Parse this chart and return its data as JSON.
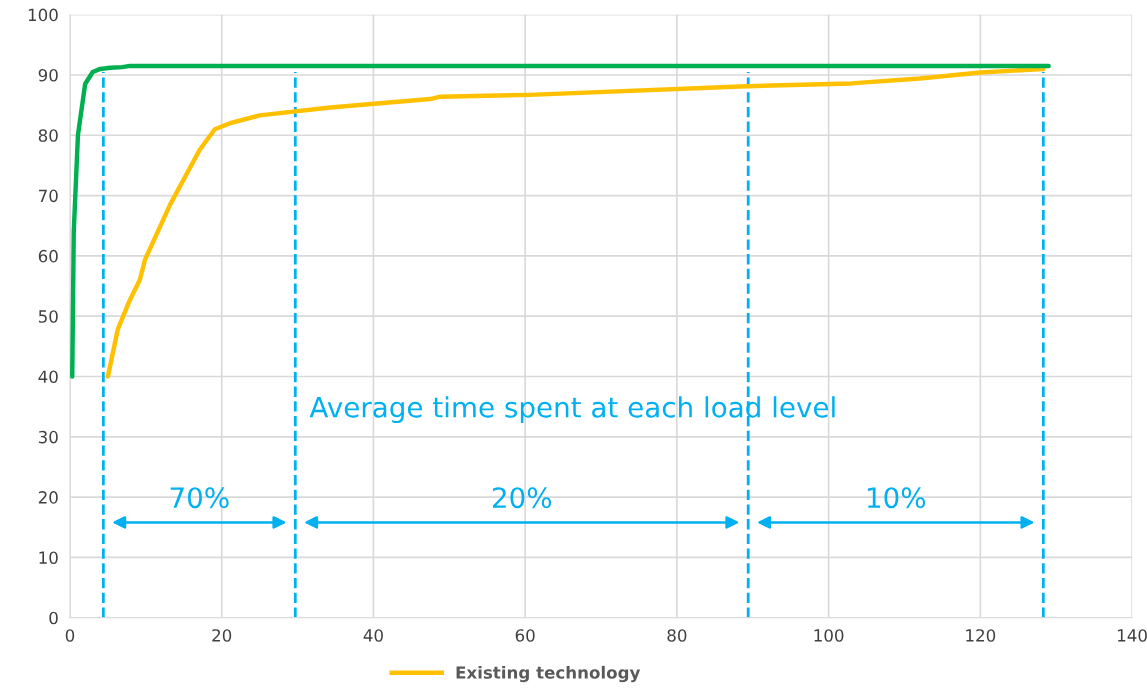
{
  "chart_data": {
    "type": "line",
    "series": [
      {
        "name": "Existing technology",
        "color": "#ffc000",
        "x": [
          5.0,
          6.3,
          7.9,
          9.2,
          9.9,
          13.2,
          17.1,
          19.1,
          21.1,
          25.0,
          34.3,
          47.5,
          48.8,
          60.6,
          88.3,
          103,
          112,
          120,
          128.3
        ],
        "values": [
          40,
          47.8,
          52.7,
          56,
          59.4,
          68.5,
          77.6,
          81,
          82,
          83.3,
          84.6,
          86,
          86.4,
          86.7,
          88.1,
          88.6,
          89.4,
          90.4,
          91
        ]
      },
      {
        "color": "#00b050",
        "x": [
          0.3,
          0.5,
          1.05,
          2,
          3,
          4,
          5.3,
          6.9,
          7.9,
          129
        ],
        "values": [
          40,
          64,
          80,
          88.5,
          90.5,
          91,
          91.2,
          91.3,
          91.5,
          91.5
        ]
      }
    ],
    "xlim": [
      0,
      140
    ],
    "xticks": [
      0,
      20,
      40,
      60,
      80,
      100,
      120,
      140
    ],
    "ylim": [
      0,
      100
    ],
    "yticks": [
      0,
      10,
      20,
      30,
      40,
      50,
      60,
      70,
      80,
      90,
      100
    ],
    "grid": true,
    "legend": "bottom",
    "marker": "none",
    "line_style": "solid",
    "ref_lines": [
      {
        "axis": "x",
        "value": 4.4,
        "color": "#00b0f0",
        "line_style": "dashed"
      },
      {
        "axis": "x",
        "value": 29.7,
        "color": "#00b0f0",
        "line_style": "dashed"
      },
      {
        "axis": "x",
        "value": 89.4,
        "color": "#00b0f0",
        "line_style": "dashed"
      },
      {
        "axis": "x",
        "value": 128.3,
        "color": "#00b0f0",
        "line_style": "dashed"
      }
    ],
    "annotations": [
      "Average time spent at each load level",
      "70%",
      "20%",
      "10%"
    ]
  }
}
